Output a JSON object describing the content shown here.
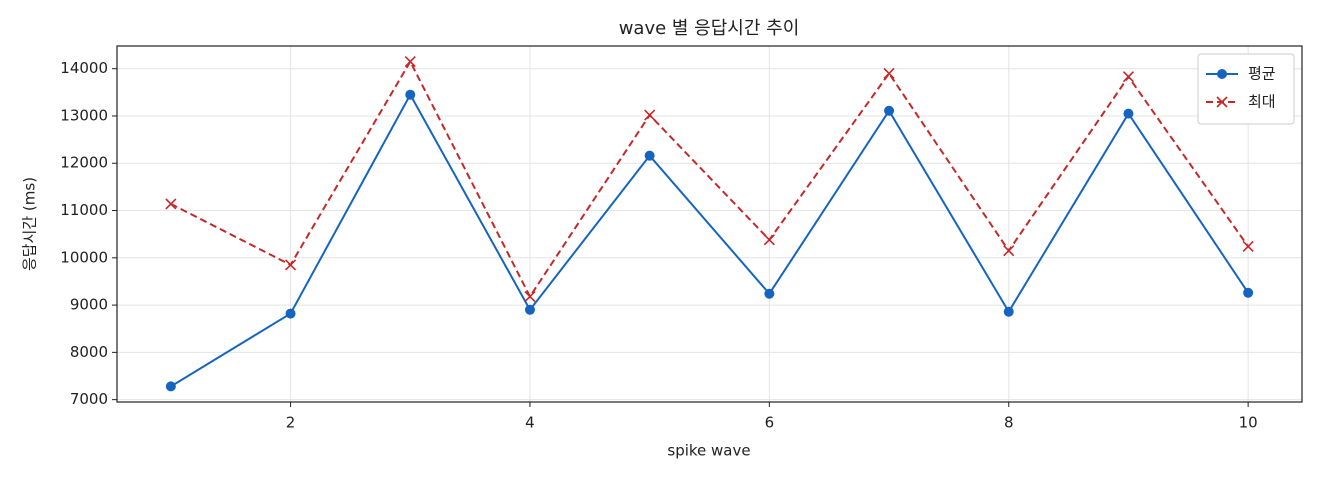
{
  "chart_data": {
    "type": "line",
    "title": "wave 별 응답시간 추이",
    "xlabel": "spike wave",
    "ylabel": "응답시간 (ms)",
    "x": [
      1,
      2,
      3,
      4,
      5,
      6,
      7,
      8,
      9,
      10
    ],
    "series": [
      {
        "name": "평균",
        "color": "#1565c0",
        "linestyle": "solid",
        "marker": "o",
        "values": [
          7280,
          8820,
          13450,
          8900,
          12160,
          9240,
          13110,
          8860,
          13050,
          9260
        ]
      },
      {
        "name": "최대",
        "color": "#c62828",
        "linestyle": "dashed",
        "marker": "x",
        "values": [
          11140,
          9850,
          14150,
          9180,
          13020,
          10380,
          13900,
          10150,
          13830,
          10240
        ]
      }
    ],
    "xlim": [
      0.55,
      10.45
    ],
    "xticks": [
      2,
      4,
      6,
      8,
      10
    ],
    "ylim": [
      6950,
      14480
    ],
    "yticks": [
      7000,
      8000,
      9000,
      10000,
      11000,
      12000,
      13000,
      14000
    ],
    "grid": true,
    "legend": "upper right"
  }
}
